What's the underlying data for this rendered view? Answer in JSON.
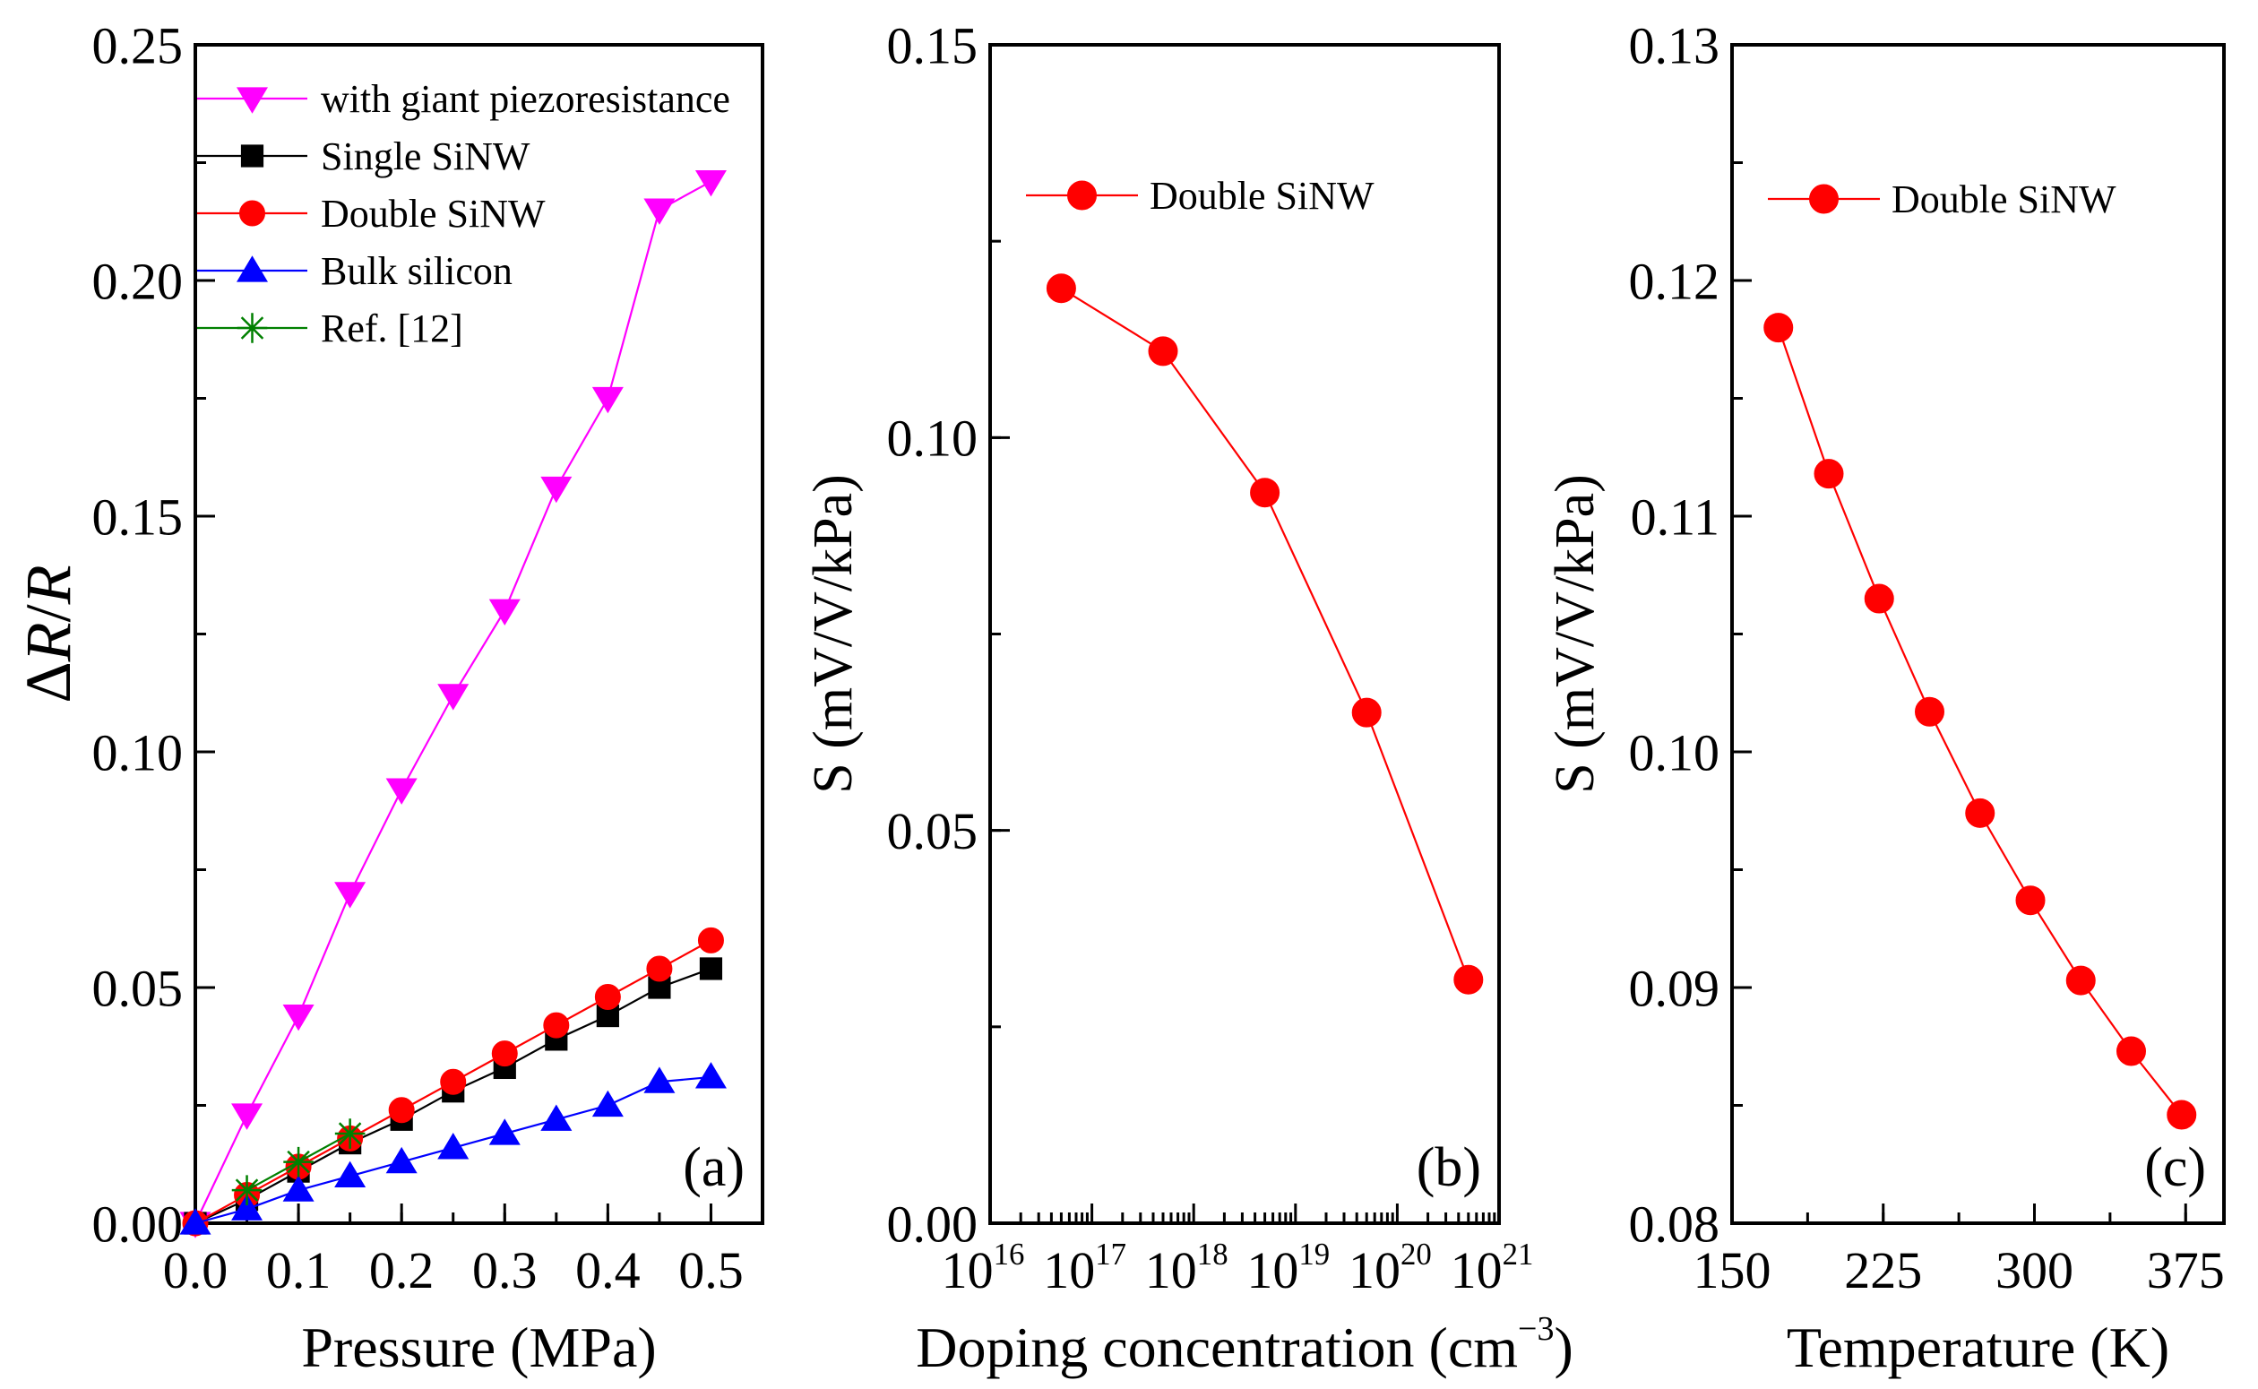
{
  "chart_data": [
    {
      "type": "line",
      "panel_label": "(a)",
      "xlabel": "Pressure (MPa)",
      "ylabel": "ΔR/R",
      "xlim": [
        0,
        0.55
      ],
      "ylim": [
        0,
        0.25
      ],
      "xscale": "linear",
      "xticks": [
        0.0,
        0.1,
        0.2,
        0.3,
        0.4,
        0.5
      ],
      "xtick_labels": [
        "0.0",
        "0.1",
        "0.2",
        "0.3",
        "0.4",
        "0.5"
      ],
      "yticks": [
        0.0,
        0.05,
        0.1,
        0.15,
        0.2,
        0.25
      ],
      "ytick_labels": [
        "0.00",
        "0.05",
        "0.10",
        "0.15",
        "0.20",
        "0.25"
      ],
      "x_minor_step": 0.05,
      "y_minor_step": 0.025,
      "legend_position": "top-left",
      "series": [
        {
          "name": "with giant piezoresistance",
          "color": "#ff00ff",
          "marker": "triangle-down",
          "x": [
            0,
            0.05,
            0.1,
            0.15,
            0.2,
            0.25,
            0.3,
            0.35,
            0.4,
            0.45,
            0.5
          ],
          "y": [
            0,
            0.023,
            0.044,
            0.07,
            0.092,
            0.112,
            0.13,
            0.156,
            0.175,
            0.215,
            0.221
          ]
        },
        {
          "name": "Single SiNW",
          "color": "#000000",
          "marker": "square",
          "x": [
            0,
            0.05,
            0.1,
            0.15,
            0.2,
            0.25,
            0.3,
            0.35,
            0.4,
            0.45,
            0.5
          ],
          "y": [
            0,
            0.005,
            0.011,
            0.017,
            0.022,
            0.028,
            0.033,
            0.039,
            0.044,
            0.05,
            0.054
          ]
        },
        {
          "name": "Double SiNW",
          "color": "#ff0000",
          "marker": "circle",
          "x": [
            0,
            0.05,
            0.1,
            0.15,
            0.2,
            0.25,
            0.3,
            0.35,
            0.4,
            0.45,
            0.5
          ],
          "y": [
            0,
            0.006,
            0.012,
            0.018,
            0.024,
            0.03,
            0.036,
            0.042,
            0.048,
            0.054,
            0.06
          ]
        },
        {
          "name": "Bulk silicon",
          "color": "#0000ff",
          "marker": "triangle-up",
          "x": [
            0,
            0.05,
            0.1,
            0.15,
            0.2,
            0.25,
            0.3,
            0.35,
            0.4,
            0.45,
            0.5
          ],
          "y": [
            0,
            0.003,
            0.007,
            0.01,
            0.013,
            0.016,
            0.019,
            0.022,
            0.025,
            0.03,
            0.031
          ]
        },
        {
          "name": "Ref. [12]",
          "color": "#008000",
          "marker": "asterisk",
          "x": [
            0.05,
            0.1,
            0.15
          ],
          "y": [
            0.007,
            0.013,
            0.019
          ]
        }
      ]
    },
    {
      "type": "line",
      "panel_label": "(b)",
      "xlabel": "Doping concentration (cm",
      "xlabel_sup": "−3",
      "xlabel_end": ")",
      "ylabel": "S (mV/V/kPa)",
      "xlim": [
        1e+16,
        1e+21
      ],
      "ylim": [
        0,
        0.15
      ],
      "xscale": "log",
      "xtick_base": "10",
      "xtick_exponents": [
        "16",
        "17",
        "18",
        "19",
        "20",
        "21"
      ],
      "yticks": [
        0.0,
        0.05,
        0.1,
        0.15
      ],
      "ytick_labels": [
        "0.00",
        "0.05",
        "0.10",
        "0.15"
      ],
      "y_minor_step": 0.025,
      "legend_position": "top-left",
      "series": [
        {
          "name": "Double SiNW",
          "color": "#ff0000",
          "marker": "circle",
          "x": [
            5e+16,
            5e+17,
            5e+18,
            5e+19,
            5e+20
          ],
          "y": [
            0.119,
            0.111,
            0.093,
            0.065,
            0.031
          ]
        }
      ]
    },
    {
      "type": "line",
      "panel_label": "(c)",
      "xlabel": "Temperature (K)",
      "ylabel": "S (mV/V/kPa)",
      "xlim": [
        150,
        394
      ],
      "ylim": [
        0.08,
        0.13
      ],
      "xscale": "linear",
      "xticks": [
        150,
        225,
        300,
        375
      ],
      "xtick_labels": [
        "150",
        "225",
        "300",
        "375"
      ],
      "yticks": [
        0.08,
        0.09,
        0.1,
        0.11,
        0.12,
        0.13
      ],
      "ytick_labels": [
        "0.08",
        "0.09",
        "0.10",
        "0.11",
        "0.12",
        "0.13"
      ],
      "x_minor_step": 37.5,
      "y_minor_step": 0.005,
      "legend_position": "top-left",
      "series": [
        {
          "name": "Double SiNW",
          "color": "#ff0000",
          "marker": "circle",
          "x": [
            173,
            198,
            223,
            248,
            273,
            298,
            323,
            348,
            373
          ],
          "y": [
            0.118,
            0.1118,
            0.1065,
            0.1017,
            0.0974,
            0.0937,
            0.0903,
            0.0873,
            0.0846
          ]
        }
      ]
    }
  ]
}
